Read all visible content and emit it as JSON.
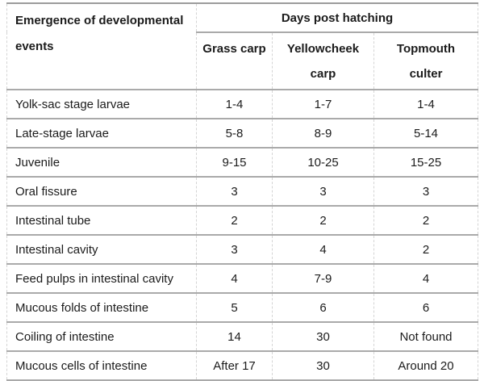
{
  "table": {
    "corner_header": "Emergence of developmental events",
    "group_header": "Days post hatching",
    "columns": [
      "Grass carp",
      "Yellowcheek carp",
      "Topmouth culter"
    ],
    "rows": [
      {
        "label": "Yolk-sac stage larvae",
        "values": [
          "1-4",
          "1-7",
          "1-4"
        ]
      },
      {
        "label": "Late-stage larvae",
        "values": [
          "5-8",
          "8-9",
          "5-14"
        ]
      },
      {
        "label": "Juvenile",
        "values": [
          "9-15",
          "10-25",
          "15-25"
        ]
      },
      {
        "label": "Oral fissure",
        "values": [
          "3",
          "3",
          "3"
        ]
      },
      {
        "label": "Intestinal tube",
        "values": [
          "2",
          "2",
          "2"
        ]
      },
      {
        "label": "Intestinal cavity",
        "values": [
          "3",
          "4",
          "2"
        ]
      },
      {
        "label": "Feed pulps in intestinal cavity",
        "values": [
          "4",
          "7-9",
          "4"
        ]
      },
      {
        "label": "Mucous folds of intestine",
        "values": [
          "5",
          "6",
          "6"
        ]
      },
      {
        "label": "Coiling of intestine",
        "values": [
          "14",
          "30",
          "Not found"
        ]
      },
      {
        "label": "Mucous cells of intestine",
        "values": [
          "After 17",
          "30",
          "Around 20"
        ]
      }
    ],
    "colors": {
      "text": "#1b1b1b",
      "border_solid": "#a6a6a6",
      "border_dashed": "#d4d4d4",
      "background": "#ffffff"
    }
  }
}
